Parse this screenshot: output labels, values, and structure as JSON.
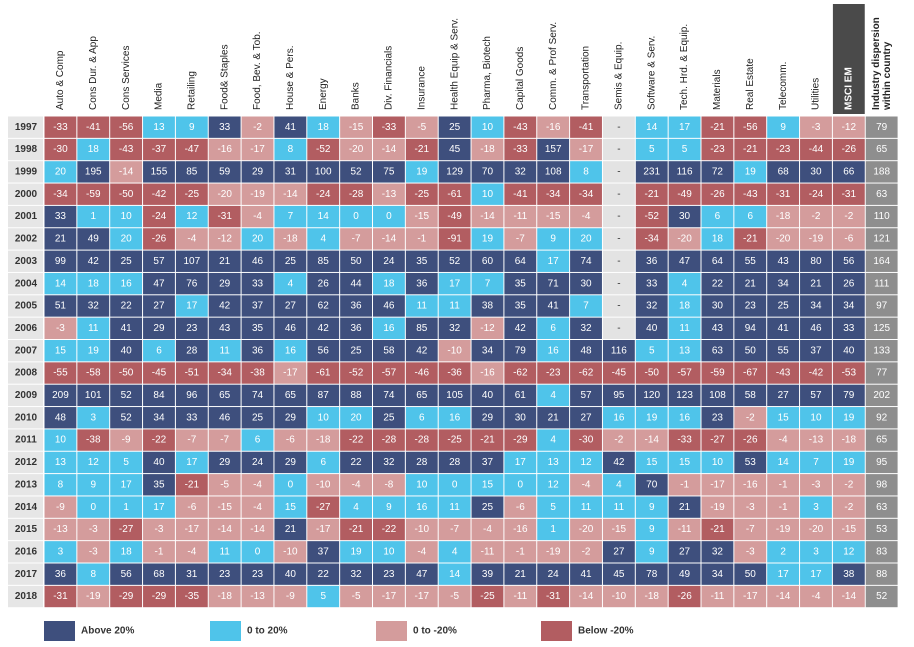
{
  "table": {
    "columns": [
      "Auto & Comp",
      "Cons Dur. & App",
      "Cons Services",
      "Media",
      "Retailing",
      "Food& Staples",
      "Food, Bev. & Tob.",
      "House & Pers.",
      "Energy",
      "Banks",
      "Div. Financials",
      "Insurance",
      "Health Equip & Serv.",
      "Pharma, Biotech",
      "Capital Goods",
      "Comm. & Prof Serv.",
      "Transportation",
      "Semis & Equip.",
      "Software & Serv.",
      "Tech. Hrd. & Equip.",
      "Materials",
      "Real Estate",
      "Telecomm.",
      "Utilities",
      "MSCI EM"
    ],
    "dispersion_header": [
      "Industry dispersion",
      "within country"
    ],
    "rows": [
      {
        "year": "1997",
        "values": [
          -33,
          -41,
          -56,
          13,
          9,
          33,
          -2,
          41,
          18,
          -15,
          -33,
          -5,
          25,
          10,
          -43,
          -16,
          -41,
          "-",
          14,
          17,
          -21,
          -56,
          9,
          -3,
          -12
        ],
        "dispersion": 79
      },
      {
        "year": "1998",
        "values": [
          -30,
          18,
          -43,
          -37,
          -47,
          -16,
          -17,
          8,
          -52,
          -20,
          -14,
          -21,
          45,
          -18,
          -33,
          157,
          -17,
          "-",
          5,
          5,
          -23,
          -21,
          -23,
          -44,
          -26
        ],
        "dispersion": 65
      },
      {
        "year": "1999",
        "values": [
          20,
          195,
          -14,
          155,
          85,
          59,
          29,
          31,
          100,
          52,
          75,
          19,
          129,
          70,
          32,
          108,
          8,
          "-",
          231,
          116,
          72,
          19,
          68,
          30,
          66
        ],
        "dispersion": 188
      },
      {
        "year": "2000",
        "values": [
          -34,
          -59,
          -50,
          -42,
          -25,
          -20,
          -19,
          -14,
          -24,
          -28,
          -13,
          -25,
          -61,
          10,
          -41,
          -34,
          -34,
          "-",
          -21,
          -49,
          -26,
          -43,
          -31,
          -24,
          -31
        ],
        "dispersion": 63
      },
      {
        "year": "2001",
        "values": [
          33,
          1,
          10,
          -24,
          12,
          -31,
          -4,
          7,
          14,
          0,
          0,
          -15,
          -49,
          -14,
          -11,
          -15,
          -4,
          "-",
          -52,
          30,
          6,
          6,
          -18,
          -2,
          -2
        ],
        "dispersion": 110
      },
      {
        "year": "2002",
        "values": [
          21,
          49,
          20,
          -26,
          -4,
          -12,
          20,
          -18,
          4,
          -7,
          -14,
          -1,
          -91,
          19,
          -7,
          9,
          20,
          "-",
          -34,
          -20,
          18,
          -21,
          -20,
          -19,
          -6
        ],
        "dispersion": 121
      },
      {
        "year": "2003",
        "values": [
          99,
          42,
          25,
          57,
          107,
          21,
          46,
          25,
          85,
          50,
          24,
          35,
          52,
          60,
          64,
          17,
          74,
          "-",
          36,
          47,
          64,
          55,
          43,
          80,
          56
        ],
        "dispersion": 164
      },
      {
        "year": "2004",
        "values": [
          14,
          18,
          16,
          47,
          76,
          29,
          33,
          4,
          26,
          44,
          18,
          36,
          17,
          7,
          35,
          71,
          30,
          "-",
          33,
          4,
          22,
          21,
          34,
          21,
          26
        ],
        "dispersion": 111
      },
      {
        "year": "2005",
        "values": [
          51,
          32,
          22,
          27,
          17,
          42,
          37,
          27,
          62,
          36,
          46,
          11,
          11,
          38,
          35,
          41,
          7,
          "-",
          32,
          18,
          30,
          23,
          25,
          34,
          34
        ],
        "dispersion": 97
      },
      {
        "year": "2006",
        "values": [
          -3,
          11,
          41,
          29,
          23,
          43,
          35,
          46,
          42,
          36,
          16,
          85,
          32,
          -12,
          42,
          6,
          32,
          "-",
          40,
          11,
          43,
          94,
          41,
          46,
          33
        ],
        "dispersion": 125
      },
      {
        "year": "2007",
        "values": [
          15,
          19,
          40,
          6,
          28,
          11,
          36,
          16,
          56,
          25,
          58,
          42,
          -10,
          34,
          79,
          16,
          48,
          116,
          5,
          13,
          63,
          50,
          55,
          37,
          40
        ],
        "dispersion": 133
      },
      {
        "year": "2008",
        "values": [
          -55,
          -58,
          -50,
          -45,
          -51,
          -34,
          -38,
          -17,
          -61,
          -52,
          -57,
          -46,
          -36,
          -16,
          -62,
          -23,
          -62,
          -45,
          -50,
          -57,
          -59,
          -67,
          -43,
          -42,
          -53
        ],
        "dispersion": 77
      },
      {
        "year": "2009",
        "values": [
          209,
          101,
          52,
          84,
          96,
          65,
          74,
          65,
          87,
          88,
          74,
          65,
          105,
          40,
          61,
          4,
          57,
          95,
          120,
          123,
          108,
          58,
          27,
          57,
          79
        ],
        "dispersion": 202
      },
      {
        "year": "2010",
        "values": [
          48,
          3,
          52,
          34,
          33,
          46,
          25,
          29,
          10,
          20,
          25,
          6,
          16,
          29,
          30,
          21,
          27,
          16,
          19,
          16,
          23,
          -2,
          15,
          10,
          19
        ],
        "dispersion": 92
      },
      {
        "year": "2011",
        "values": [
          10,
          -38,
          -9,
          -22,
          -7,
          -7,
          6,
          -6,
          -18,
          -22,
          -28,
          -28,
          -25,
          -21,
          -29,
          4,
          -30,
          -2,
          -14,
          -33,
          -27,
          -26,
          -4,
          -13,
          -18
        ],
        "dispersion": 65
      },
      {
        "year": "2012",
        "values": [
          13,
          12,
          5,
          40,
          17,
          29,
          24,
          29,
          6,
          22,
          32,
          28,
          28,
          37,
          17,
          13,
          12,
          42,
          15,
          15,
          10,
          53,
          14,
          7,
          19
        ],
        "dispersion": 95
      },
      {
        "year": "2013",
        "values": [
          8,
          9,
          17,
          35,
          -21,
          -5,
          -4,
          0,
          -10,
          -4,
          -8,
          10,
          0,
          15,
          0,
          12,
          -4,
          4,
          70,
          -1,
          -17,
          -16,
          -1,
          -3,
          -2
        ],
        "dispersion": 98
      },
      {
        "year": "2014",
        "values": [
          -9,
          0,
          1,
          17,
          -6,
          -15,
          -4,
          15,
          -27,
          4,
          9,
          16,
          11,
          25,
          -6,
          5,
          11,
          11,
          9,
          21,
          -19,
          -3,
          -1,
          3,
          -2
        ],
        "dispersion": 63
      },
      {
        "year": "2015",
        "values": [
          -13,
          -3,
          -27,
          -3,
          -17,
          -14,
          -14,
          21,
          -17,
          -21,
          -22,
          -10,
          -7,
          -4,
          -16,
          1,
          -20,
          -15,
          9,
          -11,
          -21,
          -7,
          -19,
          -20,
          -15
        ],
        "dispersion": 53
      },
      {
        "year": "2016",
        "values": [
          3,
          -3,
          18,
          -1,
          -4,
          11,
          0,
          -10,
          37,
          19,
          10,
          -4,
          4,
          -11,
          -1,
          -19,
          -2,
          27,
          9,
          27,
          32,
          -3,
          2,
          3,
          12
        ],
        "dispersion": 83
      },
      {
        "year": "2017",
        "values": [
          36,
          8,
          56,
          68,
          31,
          23,
          23,
          40,
          22,
          32,
          23,
          47,
          14,
          39,
          21,
          24,
          41,
          45,
          78,
          49,
          34,
          50,
          17,
          17,
          38
        ],
        "dispersion": 88
      },
      {
        "year": "2018",
        "values": [
          -31,
          -19,
          -29,
          -29,
          -35,
          -18,
          -13,
          -9,
          5,
          -5,
          -17,
          -17,
          -5,
          -25,
          -11,
          -31,
          -14,
          -10,
          -18,
          -26,
          -11,
          -17,
          -14,
          -4,
          -14
        ],
        "dispersion": 52
      }
    ],
    "legend": [
      {
        "label": "Above 20%",
        "color": "#3e4f7d",
        "min": 20
      },
      {
        "label": "0 to 20%",
        "color": "#4fc4ea",
        "min": 0
      },
      {
        "label": "0 to -20%",
        "color": "#d49c9c",
        "min": -20
      },
      {
        "label": "Below -20%",
        "color": "#b25d61",
        "min": null
      }
    ]
  }
}
